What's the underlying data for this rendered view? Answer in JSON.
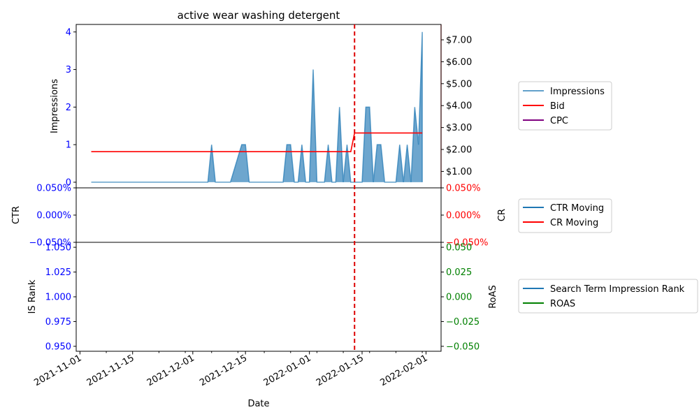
{
  "colors": {
    "impressions": "#1f77b4",
    "bid": "#ff0000",
    "cpc": "#800080",
    "ctr": "#1f77b4",
    "cr": "#ff0000",
    "rank": "#1f77b4",
    "roas": "#008000",
    "left_axis_ticks": "#0000ff",
    "right_axis_ticks_top": "#ff0000",
    "right_axis_ticks_bottom": "#008000",
    "marker": "#dd0000"
  },
  "chart_data": [
    {
      "type": "area",
      "title": "active wear washing detergent",
      "ylabel": "Impressions",
      "ylim": [
        -0.15,
        4.2
      ],
      "yticks": [
        "0",
        "1",
        "2",
        "3",
        "4"
      ],
      "y2ticks": [
        "$1.00",
        "$2.00",
        "$3.00",
        "$4.00",
        "$5.00",
        "$6.00",
        "$7.00"
      ],
      "y2lim": [
        0.25,
        7.7
      ],
      "marker_date": "2022-01-13",
      "series": [
        {
          "name": "Impressions",
          "points": [
            [
              "2021-11-04",
              0
            ],
            [
              "2021-12-05",
              0
            ],
            [
              "2021-12-06",
              1
            ],
            [
              "2021-12-07",
              0
            ],
            [
              "2021-12-11",
              0
            ],
            [
              "2021-12-14",
              1
            ],
            [
              "2021-12-15",
              1
            ],
            [
              "2021-12-16",
              0
            ],
            [
              "2021-12-25",
              0
            ],
            [
              "2021-12-26",
              1
            ],
            [
              "2021-12-27",
              1
            ],
            [
              "2021-12-28",
              0
            ],
            [
              "2021-12-29",
              0
            ],
            [
              "2021-12-30",
              1
            ],
            [
              "2021-12-31",
              0
            ],
            [
              "2022-01-01",
              0
            ],
            [
              "2022-01-02",
              3
            ],
            [
              "2022-01-03",
              0
            ],
            [
              "2022-01-05",
              0
            ],
            [
              "2022-01-06",
              1
            ],
            [
              "2022-01-07",
              0
            ],
            [
              "2022-01-08",
              0
            ],
            [
              "2022-01-09",
              2
            ],
            [
              "2022-01-10",
              0
            ],
            [
              "2022-01-11",
              1
            ],
            [
              "2022-01-12",
              0
            ],
            [
              "2022-01-15",
              0
            ],
            [
              "2022-01-16",
              2
            ],
            [
              "2022-01-17",
              2
            ],
            [
              "2022-01-18",
              0
            ],
            [
              "2022-01-19",
              1
            ],
            [
              "2022-01-20",
              1
            ],
            [
              "2022-01-21",
              0
            ],
            [
              "2022-01-24",
              0
            ],
            [
              "2022-01-25",
              1
            ],
            [
              "2022-01-26",
              0
            ],
            [
              "2022-01-27",
              1
            ],
            [
              "2022-01-28",
              0
            ],
            [
              "2022-01-29",
              2
            ],
            [
              "2022-01-30",
              1
            ],
            [
              "2022-01-31",
              4
            ],
            [
              "2022-01-31",
              0
            ]
          ]
        },
        {
          "name": "Bid",
          "axis": "right",
          "points": [
            [
              "2021-11-04",
              1.9
            ],
            [
              "2022-01-12",
              1.9
            ],
            [
              "2022-01-13",
              2.75
            ],
            [
              "2022-01-31",
              2.75
            ]
          ]
        },
        {
          "name": "CPC",
          "axis": "right",
          "points": []
        }
      ],
      "legend": [
        "Impressions",
        "Bid",
        "CPC"
      ],
      "legend_placement": "right"
    },
    {
      "type": "line",
      "ylabel": "CTR",
      "y2label": "CR",
      "yticks": [
        "0.050%",
        "0.000%",
        "−0.050%"
      ],
      "y2ticks": [
        "0.050%",
        "0.000%",
        "−0.050%"
      ],
      "ylim": [
        -0.05,
        0.05
      ],
      "series": [
        {
          "name": "CTR Moving",
          "points": []
        },
        {
          "name": "CR Moving",
          "points": []
        }
      ],
      "legend": [
        "CTR Moving",
        "CR Moving"
      ],
      "legend_placement": "right"
    },
    {
      "type": "line",
      "ylabel": "IS Rank",
      "y2label": "RoAS",
      "yticks": [
        "1.050",
        "1.025",
        "1.000",
        "0.975",
        "0.950"
      ],
      "y2ticks": [
        "0.050",
        "0.025",
        "0.000",
        "−0.025",
        "−0.050"
      ],
      "ylim": [
        0.945,
        1.055
      ],
      "xlabel": "Date",
      "xticks": [
        "2021-11-01",
        "2021-11-15",
        "2021-12-01",
        "2021-12-15",
        "2022-01-01",
        "2022-01-15",
        "2022-02-01"
      ],
      "xlim": [
        "2021-10-31",
        "2022-02-05"
      ],
      "series": [
        {
          "name": "Search Term Impression Rank",
          "points": []
        },
        {
          "name": "ROAS",
          "points": []
        }
      ],
      "legend": [
        "Search Term Impression Rank",
        "ROAS"
      ],
      "legend_placement": "right"
    }
  ]
}
